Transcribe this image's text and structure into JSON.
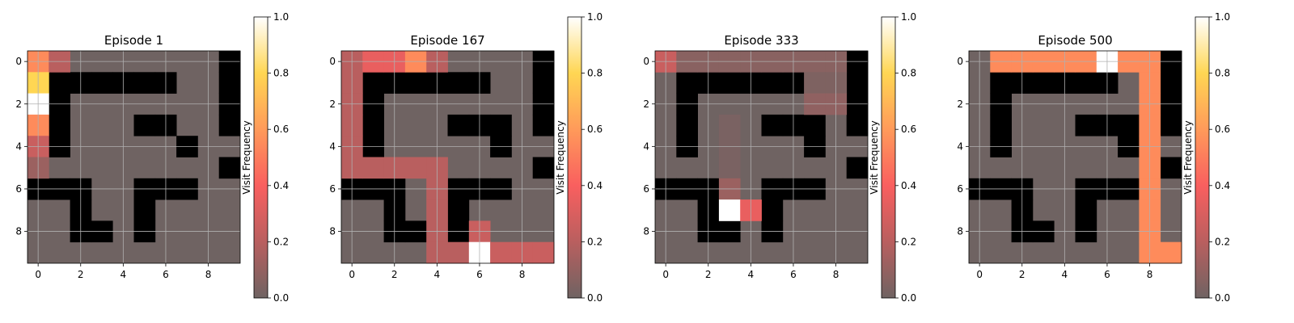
{
  "chart_data": [
    {
      "type": "heatmap",
      "title": "Episode 1",
      "x_ticks": [
        "0",
        "2",
        "4",
        "6",
        "8"
      ],
      "y_ticks": [
        "0",
        "2",
        "4",
        "6",
        "8"
      ],
      "walls": [
        "0000000001",
        "0111111001",
        "0100000001",
        "0100033001",
        "0100000100",
        "0000000001",
        "1110011100",
        "0010010000",
        "0011010000",
        "0000000000"
      ],
      "visits": [
        {
          "row": 0,
          "col": 0,
          "v": 0.55
        },
        {
          "row": 0,
          "col": 1,
          "v": 0.2
        },
        {
          "row": 1,
          "col": 0,
          "v": 0.8
        },
        {
          "row": 2,
          "col": 0,
          "v": 1.0
        },
        {
          "row": 3,
          "col": 0,
          "v": 0.55
        },
        {
          "row": 4,
          "col": 0,
          "v": 0.25
        },
        {
          "row": 5,
          "col": 0,
          "v": 0.12
        }
      ]
    },
    {
      "type": "heatmap",
      "title": "Episode 167",
      "x_ticks": [
        "0",
        "2",
        "4",
        "6",
        "8"
      ],
      "y_ticks": [
        "0",
        "2",
        "4",
        "6",
        "8"
      ],
      "walls": [
        "0000000001",
        "0111111001",
        "0100000001",
        "0100011101",
        "0100000100",
        "0000000001",
        "1110011100",
        "0010010000",
        "0011010000",
        "0000000000"
      ],
      "visits": [
        {
          "row": 0,
          "col": 0,
          "v": 0.2
        },
        {
          "row": 0,
          "col": 1,
          "v": 0.35
        },
        {
          "row": 0,
          "col": 2,
          "v": 0.35
        },
        {
          "row": 0,
          "col": 3,
          "v": 0.55
        },
        {
          "row": 0,
          "col": 4,
          "v": 0.2
        },
        {
          "row": 1,
          "col": 0,
          "v": 0.2
        },
        {
          "row": 2,
          "col": 0,
          "v": 0.2
        },
        {
          "row": 3,
          "col": 0,
          "v": 0.2
        },
        {
          "row": 4,
          "col": 0,
          "v": 0.2
        },
        {
          "row": 5,
          "col": 0,
          "v": 0.2
        },
        {
          "row": 5,
          "col": 1,
          "v": 0.2
        },
        {
          "row": 5,
          "col": 2,
          "v": 0.2
        },
        {
          "row": 5,
          "col": 3,
          "v": 0.2
        },
        {
          "row": 5,
          "col": 4,
          "v": 0.2
        },
        {
          "row": 6,
          "col": 4,
          "v": 0.2
        },
        {
          "row": 7,
          "col": 4,
          "v": 0.2
        },
        {
          "row": 8,
          "col": 4,
          "v": 0.2
        },
        {
          "row": 8,
          "col": 6,
          "v": 0.25
        },
        {
          "row": 9,
          "col": 4,
          "v": 0.2
        },
        {
          "row": 9,
          "col": 5,
          "v": 0.2
        },
        {
          "row": 9,
          "col": 6,
          "v": 1.0
        },
        {
          "row": 9,
          "col": 7,
          "v": 0.25
        },
        {
          "row": 9,
          "col": 8,
          "v": 0.25
        },
        {
          "row": 9,
          "col": 9,
          "v": 0.25
        }
      ]
    },
    {
      "type": "heatmap",
      "title": "Episode 333",
      "x_ticks": [
        "0",
        "2",
        "4",
        "6",
        "8"
      ],
      "y_ticks": [
        "0",
        "2",
        "4",
        "6",
        "8"
      ],
      "walls": [
        "0000000001",
        "0111111001",
        "0100000001",
        "0100011101",
        "0100000100",
        "0000000001",
        "1110011100",
        "0010010000",
        "0011010000",
        "0000000000"
      ],
      "visits": [
        {
          "row": 0,
          "col": 0,
          "v": 0.25
        },
        {
          "row": 0,
          "col": 1,
          "v": 0.07
        },
        {
          "row": 0,
          "col": 2,
          "v": 0.07
        },
        {
          "row": 0,
          "col": 3,
          "v": 0.07
        },
        {
          "row": 0,
          "col": 4,
          "v": 0.07
        },
        {
          "row": 0,
          "col": 5,
          "v": 0.07
        },
        {
          "row": 0,
          "col": 6,
          "v": 0.07
        },
        {
          "row": 0,
          "col": 7,
          "v": 0.07
        },
        {
          "row": 0,
          "col": 8,
          "v": 0.07
        },
        {
          "row": 1,
          "col": 7,
          "v": 0.04
        },
        {
          "row": 1,
          "col": 8,
          "v": 0.04
        },
        {
          "row": 2,
          "col": 7,
          "v": 0.09
        },
        {
          "row": 2,
          "col": 8,
          "v": 0.09
        },
        {
          "row": 3,
          "col": 3,
          "v": 0.03
        },
        {
          "row": 4,
          "col": 3,
          "v": 0.03
        },
        {
          "row": 5,
          "col": 3,
          "v": 0.03
        },
        {
          "row": 6,
          "col": 3,
          "v": 0.12
        },
        {
          "row": 7,
          "col": 3,
          "v": 1.0
        },
        {
          "row": 7,
          "col": 4,
          "v": 0.35
        }
      ]
    },
    {
      "type": "heatmap",
      "title": "Episode 500",
      "x_ticks": [
        "0",
        "2",
        "4",
        "6",
        "8"
      ],
      "y_ticks": [
        "0",
        "2",
        "4",
        "6",
        "8"
      ],
      "walls": [
        "0000000001",
        "0111111001",
        "0100000001",
        "0100011101",
        "0100000100",
        "0000000001",
        "1110011100",
        "0010010000",
        "0011010000",
        "0000000000"
      ],
      "visits": [
        {
          "row": 0,
          "col": 1,
          "v": 0.55
        },
        {
          "row": 0,
          "col": 2,
          "v": 0.55
        },
        {
          "row": 0,
          "col": 3,
          "v": 0.55
        },
        {
          "row": 0,
          "col": 4,
          "v": 0.55
        },
        {
          "row": 0,
          "col": 5,
          "v": 0.55
        },
        {
          "row": 0,
          "col": 6,
          "v": 1.0
        },
        {
          "row": 0,
          "col": 7,
          "v": 0.55
        },
        {
          "row": 0,
          "col": 8,
          "v": 0.55
        },
        {
          "row": 1,
          "col": 8,
          "v": 0.55
        },
        {
          "row": 2,
          "col": 8,
          "v": 0.55
        },
        {
          "row": 3,
          "col": 8,
          "v": 0.55
        },
        {
          "row": 4,
          "col": 8,
          "v": 0.55
        },
        {
          "row": 5,
          "col": 8,
          "v": 0.55
        },
        {
          "row": 6,
          "col": 8,
          "v": 0.55
        },
        {
          "row": 7,
          "col": 8,
          "v": 0.55
        },
        {
          "row": 8,
          "col": 8,
          "v": 0.55
        },
        {
          "row": 9,
          "col": 8,
          "v": 0.55
        },
        {
          "row": 9,
          "col": 9,
          "v": 0.55
        }
      ]
    }
  ],
  "colorbar": {
    "label": "Visit Frequency",
    "ticks": [
      "0.0",
      "0.2",
      "0.4",
      "0.6",
      "0.8",
      "1.0"
    ],
    "range": [
      0,
      1
    ]
  },
  "colors": {
    "wall": "#000000",
    "empty": "#6f6362",
    "grid": "#b0b0b0",
    "colormap": [
      "#6f6362",
      "#b95f5f",
      "#f95f5f",
      "#ff9a5a",
      "#ffd653",
      "#ffffff"
    ]
  }
}
